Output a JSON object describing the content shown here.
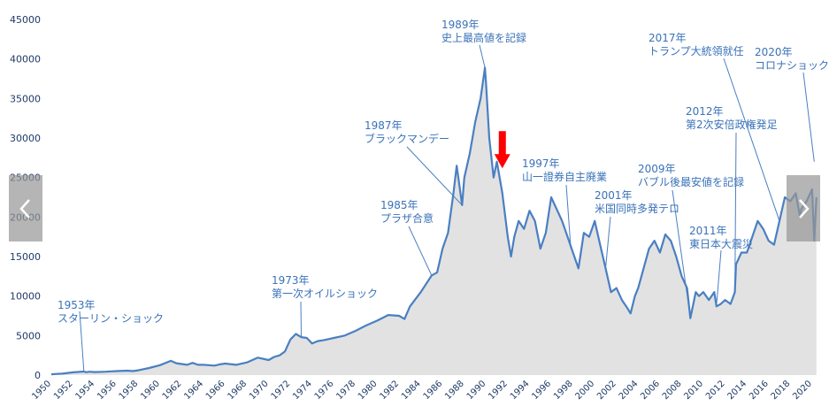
{
  "chart_data": {
    "type": "area",
    "title": "",
    "xlabel": "",
    "ylabel": "",
    "xlim": [
      1950,
      2020.5
    ],
    "ylim": [
      0,
      45000
    ],
    "y_ticks": [
      0,
      5000,
      10000,
      15000,
      20000,
      25000,
      30000,
      35000,
      40000,
      45000
    ],
    "x_ticks": [
      1950,
      1952,
      1954,
      1956,
      1958,
      1960,
      1962,
      1964,
      1966,
      1968,
      1970,
      1972,
      1974,
      1976,
      1978,
      1980,
      1982,
      1984,
      1986,
      1988,
      1990,
      1992,
      1994,
      1996,
      1998,
      2000,
      2002,
      2004,
      2006,
      2008,
      2010,
      2012,
      2014,
      2016,
      2018,
      2020
    ],
    "grid": false,
    "line_color": "#4a7fc2",
    "fill_color": "#e2e2e2",
    "marker_color": "#ff0000",
    "series": [
      {
        "x": [
          1950.0,
          1950.5,
          1951.0,
          1952.0,
          1953.0,
          1953.2,
          1953.5,
          1954.0,
          1955.0,
          1956.0,
          1957.0,
          1957.5,
          1958.0,
          1959.0,
          1960.0,
          1961.0,
          1961.5,
          1962.0,
          1962.5,
          1963.0,
          1963.5,
          1964.0,
          1965.0,
          1965.5,
          1966.0,
          1967.0,
          1968.0,
          1969.0,
          1970.0,
          1970.5,
          1971.0,
          1971.5,
          1972.0,
          1972.5,
          1973.0,
          1973.5,
          1974.0,
          1974.5,
          1975.0,
          1976.0,
          1977.0,
          1978.0,
          1979.0,
          1980.0,
          1981.0,
          1982.0,
          1982.5,
          1983.0,
          1984.0,
          1985.0,
          1985.5,
          1986.0,
          1986.5,
          1987.0,
          1987.3,
          1987.8,
          1988.0,
          1988.5,
          1989.0,
          1989.5,
          1989.9,
          1990.0,
          1990.3,
          1990.7,
          1991.0,
          1991.5,
          1992.0,
          1992.3,
          1992.6,
          1993.0,
          1993.5,
          1994.0,
          1994.5,
          1995.0,
          1995.5,
          1996.0,
          1996.5,
          1997.0,
          1997.5,
          1998.0,
          1998.5,
          1999.0,
          1999.5,
          2000.0,
          2000.5,
          2001.0,
          2001.5,
          2002.0,
          2002.5,
          2003.0,
          2003.3,
          2003.7,
          2004.0,
          2005.0,
          2005.5,
          2006.0,
          2006.5,
          2007.0,
          2007.5,
          2008.0,
          2008.5,
          2008.8,
          2009.0,
          2009.3,
          2009.6,
          2010.0,
          2010.5,
          2011.0,
          2011.2,
          2011.6,
          2012.0,
          2012.5,
          2012.9,
          2013.0,
          2013.5,
          2014.0,
          2014.5,
          2015.0,
          2015.5,
          2016.0,
          2016.5,
          2017.0,
          2017.5,
          2018.0,
          2018.5,
          2018.9,
          2019.0,
          2019.5,
          2020.0,
          2020.2,
          2020.4
        ],
        "values": [
          100,
          150,
          180,
          350,
          450,
          360,
          420,
          380,
          420,
          500,
          560,
          500,
          600,
          900,
          1250,
          1800,
          1500,
          1400,
          1300,
          1550,
          1300,
          1300,
          1200,
          1350,
          1450,
          1300,
          1600,
          2200,
          1900,
          2300,
          2500,
          3000,
          4500,
          5200,
          4800,
          4700,
          4000,
          4300,
          4400,
          4700,
          5000,
          5600,
          6300,
          6900,
          7600,
          7500,
          7100,
          8700,
          10500,
          12600,
          13000,
          16000,
          18000,
          23000,
          26500,
          21500,
          25000,
          28000,
          32000,
          35000,
          38900,
          37000,
          30000,
          25000,
          27000,
          23000,
          17500,
          15000,
          17500,
          19500,
          18500,
          20800,
          19500,
          16000,
          18000,
          22500,
          21000,
          19500,
          17500,
          15500,
          13500,
          18000,
          17500,
          19500,
          16500,
          13500,
          10500,
          11000,
          9500,
          8500,
          7800,
          10000,
          11000,
          16000,
          17000,
          15500,
          17800,
          17000,
          15000,
          12500,
          11000,
          7200,
          8500,
          10500,
          10000,
          10500,
          9500,
          10500,
          8700,
          9000,
          9500,
          9000,
          10500,
          14000,
          15500,
          15500,
          17500,
          19500,
          18500,
          17000,
          16500,
          19500,
          22500,
          22000,
          23000,
          20000,
          21000,
          22000,
          23500,
          17000,
          22500
        ]
      }
    ],
    "annotations": [
      {
        "lines": [
          "1953年",
          "スターリン・ショック"
        ],
        "x": 1953.0,
        "y": 450
      },
      {
        "lines": [
          "1973年",
          "第一次オイルショック"
        ],
        "x": 1973.0,
        "y": 4800
      },
      {
        "lines": [
          "1985年",
          "プラザ合意"
        ],
        "x": 1985.0,
        "y": 12600
      },
      {
        "lines": [
          "1987年",
          "ブラックマンデー"
        ],
        "x": 1987.8,
        "y": 21500
      },
      {
        "lines": [
          "1989年",
          "史上最高値を記録"
        ],
        "x": 1989.9,
        "y": 38900
      },
      {
        "lines": [
          "1997年",
          "山一證券自主廃業"
        ],
        "x": 1997.8,
        "y": 16000
      },
      {
        "lines": [
          "2001年",
          "米国同時多発テロ"
        ],
        "x": 2001.0,
        "y": 13500
      },
      {
        "lines": [
          "2009年",
          "バブル後最安値を記録"
        ],
        "x": 2008.8,
        "y": 7200
      },
      {
        "lines": [
          "2011年",
          "東日本大震災"
        ],
        "x": 2011.2,
        "y": 8700
      },
      {
        "lines": [
          "2012年",
          "第2次安倍政権発足"
        ],
        "x": 2012.9,
        "y": 10500
      },
      {
        "lines": [
          "2017年",
          "トランプ大統領就任"
        ],
        "x": 2017.0,
        "y": 19500
      },
      {
        "lines": [
          "2020年",
          "コロナショック"
        ],
        "x": 2020.2,
        "y": 27000
      }
    ],
    "marker": {
      "type": "arrow-down",
      "x": 1991.5,
      "y": 25500
    }
  },
  "nav": {
    "prev": {
      "icon": "chevron-left-icon"
    },
    "next": {
      "icon": "chevron-right-icon"
    }
  }
}
